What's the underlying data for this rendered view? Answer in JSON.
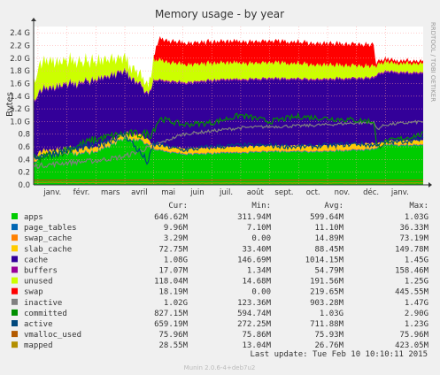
{
  "chart_data": {
    "type": "area",
    "title": "Memory usage - by year",
    "ylabel": "Bytes",
    "side_label": "RRDTOOL / TOBI OETIKER",
    "ylim": [
      0,
      2.5
    ],
    "y_ticks": [
      {
        "value": 0.0,
        "label": "0.0"
      },
      {
        "value": 0.2,
        "label": "0.2"
      },
      {
        "value": 0.4,
        "label": "0.4"
      },
      {
        "value": 0.6,
        "label": "0.6"
      },
      {
        "value": 0.8,
        "label": "0.8"
      },
      {
        "value": 1.0,
        "label": "1.0 G"
      },
      {
        "value": 1.2,
        "label": "1.2 G"
      },
      {
        "value": 1.4,
        "label": "1.4 G"
      },
      {
        "value": 1.6,
        "label": "1.6 G"
      },
      {
        "value": 1.8,
        "label": "1.8 G"
      },
      {
        "value": 2.0,
        "label": "2.0 G"
      },
      {
        "value": 2.2,
        "label": "2.2 G"
      },
      {
        "value": 2.4,
        "label": "2.4 G"
      }
    ],
    "x_ticks": [
      "janv.",
      "févr.",
      "mars",
      "avril",
      "mai",
      "juin",
      "juil.",
      "août",
      "sept.",
      "oct.",
      "nov.",
      "déc.",
      "janv."
    ],
    "x_tick_months": [
      0,
      1,
      2,
      3,
      4,
      5,
      6,
      7,
      8,
      9,
      10,
      11,
      12
    ],
    "x_range_months": [
      -0.15,
      13.3
    ],
    "grid": true,
    "stacked_layers": [
      {
        "name": "apps",
        "color": "#00cc00",
        "keys": [
          [
            0,
            0.45
          ],
          [
            1,
            0.48
          ],
          [
            2,
            0.52
          ],
          [
            3,
            0.72
          ],
          [
            3.6,
            0.7
          ],
          [
            4,
            0.55
          ],
          [
            5,
            0.48
          ],
          [
            6,
            0.49
          ],
          [
            7,
            0.5
          ],
          [
            8,
            0.52
          ],
          [
            9,
            0.52
          ],
          [
            10,
            0.52
          ],
          [
            11,
            0.55
          ],
          [
            11.6,
            0.55
          ],
          [
            11.7,
            0.58
          ],
          [
            12,
            0.62
          ],
          [
            13.3,
            0.62
          ]
        ]
      },
      {
        "name": "page_tables",
        "color": "#0066b3",
        "keys": [
          [
            0,
            0.01
          ],
          [
            13.3,
            0.01
          ]
        ]
      },
      {
        "name": "swap_cache",
        "color": "#ff8000",
        "keys": [
          [
            0,
            0.012
          ],
          [
            13.3,
            0.012
          ]
        ]
      },
      {
        "name": "slab_cache",
        "color": "#ffcc00",
        "keys": [
          [
            0,
            0.06
          ],
          [
            3,
            0.07
          ],
          [
            4,
            0.07
          ],
          [
            7,
            0.08
          ],
          [
            11.6,
            0.08
          ],
          [
            11.7,
            0.05
          ],
          [
            13.3,
            0.06
          ]
        ]
      },
      {
        "name": "cache",
        "color": "#330099",
        "keys": [
          [
            0,
            0.95
          ],
          [
            1,
            1.0
          ],
          [
            2,
            1.05
          ],
          [
            3,
            0.95
          ],
          [
            3.8,
            0.7
          ],
          [
            4,
            1.0
          ],
          [
            6,
            1.05
          ],
          [
            9,
            1.04
          ],
          [
            11.6,
            1.02
          ],
          [
            11.7,
            1.08
          ],
          [
            13.3,
            1.05
          ]
        ]
      },
      {
        "name": "buffers",
        "color": "#990099",
        "keys": [
          [
            0,
            0.02
          ],
          [
            13.3,
            0.02
          ]
        ]
      },
      {
        "name": "unused",
        "color": "#ccff00",
        "keys": [
          [
            0,
            0.43
          ],
          [
            1,
            0.36
          ],
          [
            2,
            0.29
          ],
          [
            3,
            0.19
          ],
          [
            3.8,
            0.14
          ],
          [
            4,
            0.31
          ],
          [
            6,
            0.26
          ],
          [
            9,
            0.24
          ],
          [
            11.6,
            0.18
          ],
          [
            11.7,
            0.14
          ],
          [
            13.3,
            0.14
          ]
        ]
      }
    ],
    "swap_area": {
      "name": "swap",
      "color": "#ff0000",
      "keys": [
        [
          0,
          0.0
        ],
        [
          4.0,
          0.0
        ],
        [
          4.05,
          0.18
        ],
        [
          4.2,
          0.34
        ],
        [
          11.6,
          0.34
        ],
        [
          11.65,
          0.05
        ],
        [
          13.3,
          0.04
        ]
      ]
    },
    "lines": [
      {
        "name": "inactive",
        "color": "#808080",
        "keys": [
          [
            0,
            0.3
          ],
          [
            1,
            0.35
          ],
          [
            2,
            0.38
          ],
          [
            3,
            0.45
          ],
          [
            4,
            0.62
          ],
          [
            5,
            0.8
          ],
          [
            6,
            0.85
          ],
          [
            7,
            0.9
          ],
          [
            8,
            0.92
          ],
          [
            9,
            0.93
          ],
          [
            10,
            0.95
          ],
          [
            11,
            0.98
          ],
          [
            11.6,
            0.98
          ],
          [
            11.7,
            0.88
          ],
          [
            12,
            0.95
          ],
          [
            13.3,
            1.0
          ]
        ]
      },
      {
        "name": "committed",
        "color": "#008f00",
        "keys": [
          [
            0,
            0.4
          ],
          [
            1,
            0.55
          ],
          [
            2,
            0.72
          ],
          [
            3,
            0.8
          ],
          [
            3.9,
            0.8
          ],
          [
            4.2,
            1.05
          ],
          [
            5,
            0.95
          ],
          [
            6,
            0.98
          ],
          [
            7,
            1.1
          ],
          [
            8,
            1.0
          ],
          [
            9,
            1.08
          ],
          [
            10,
            1.05
          ],
          [
            11,
            1.02
          ],
          [
            11.6,
            1.0
          ],
          [
            11.7,
            0.58
          ],
          [
            12,
            0.68
          ],
          [
            13.3,
            0.8
          ]
        ]
      },
      {
        "name": "active",
        "color": "#00487d",
        "keys": [
          [
            0,
            0.45
          ],
          [
            1,
            0.55
          ],
          [
            2,
            0.62
          ],
          [
            3,
            0.8
          ],
          [
            3.8,
            0.35
          ],
          [
            4,
            0.65
          ],
          [
            5,
            0.55
          ],
          [
            6,
            0.6
          ],
          [
            7,
            0.62
          ],
          [
            8,
            0.62
          ],
          [
            9,
            0.6
          ],
          [
            10,
            0.62
          ],
          [
            11,
            0.65
          ],
          [
            11.6,
            0.62
          ],
          [
            11.7,
            0.65
          ],
          [
            13.3,
            0.72
          ]
        ]
      },
      {
        "name": "vmalloc_used",
        "color": "#b35a00",
        "keys": [
          [
            0,
            0.076
          ],
          [
            13.3,
            0.076
          ]
        ]
      },
      {
        "name": "mapped",
        "color": "#b38f00",
        "keys": [
          [
            0,
            0.04
          ],
          [
            4,
            0.03
          ],
          [
            13.3,
            0.03
          ]
        ]
      }
    ]
  },
  "legend": {
    "headers": {
      "cur": "Cur:",
      "min": "Min:",
      "avg": "Avg:",
      "max": "Max:"
    },
    "rows": [
      {
        "name": "apps",
        "color": "#00cc00",
        "cur": "646.62M",
        "min": "311.94M",
        "avg": "599.64M",
        "max": "1.03G"
      },
      {
        "name": "page_tables",
        "color": "#0066b3",
        "cur": "9.96M",
        "min": "7.10M",
        "avg": "11.10M",
        "max": "36.33M"
      },
      {
        "name": "swap_cache",
        "color": "#ff8000",
        "cur": "3.29M",
        "min": "0.00",
        "avg": "14.89M",
        "max": "73.19M"
      },
      {
        "name": "slab_cache",
        "color": "#ffcc00",
        "cur": "72.75M",
        "min": "33.40M",
        "avg": "88.45M",
        "max": "149.78M"
      },
      {
        "name": "cache",
        "color": "#330099",
        "cur": "1.08G",
        "min": "146.69M",
        "avg": "1014.15M",
        "max": "1.45G"
      },
      {
        "name": "buffers",
        "color": "#990099",
        "cur": "17.07M",
        "min": "1.34M",
        "avg": "54.79M",
        "max": "158.46M"
      },
      {
        "name": "unused",
        "color": "#ccff00",
        "cur": "118.04M",
        "min": "14.68M",
        "avg": "191.56M",
        "max": "1.25G"
      },
      {
        "name": "swap",
        "color": "#ff0000",
        "cur": "18.19M",
        "min": "0.00",
        "avg": "219.65M",
        "max": "445.55M"
      },
      {
        "name": "inactive",
        "color": "#808080",
        "cur": "1.02G",
        "min": "123.36M",
        "avg": "903.28M",
        "max": "1.47G"
      },
      {
        "name": "committed",
        "color": "#008f00",
        "cur": "827.15M",
        "min": "594.74M",
        "avg": "1.03G",
        "max": "2.90G"
      },
      {
        "name": "active",
        "color": "#00487d",
        "cur": "659.19M",
        "min": "272.25M",
        "avg": "711.88M",
        "max": "1.23G"
      },
      {
        "name": "vmalloc_used",
        "color": "#b35a00",
        "cur": "75.96M",
        "min": "75.86M",
        "avg": "75.93M",
        "max": "75.96M"
      },
      {
        "name": "mapped",
        "color": "#b38f00",
        "cur": "28.55M",
        "min": "13.04M",
        "avg": "26.76M",
        "max": "423.05M"
      }
    ]
  },
  "footer": {
    "last_update": "Last update:  Tue Feb 10 10:10:11 2015",
    "munin_version": "Munin 2.0.6-4+deb7u2"
  }
}
